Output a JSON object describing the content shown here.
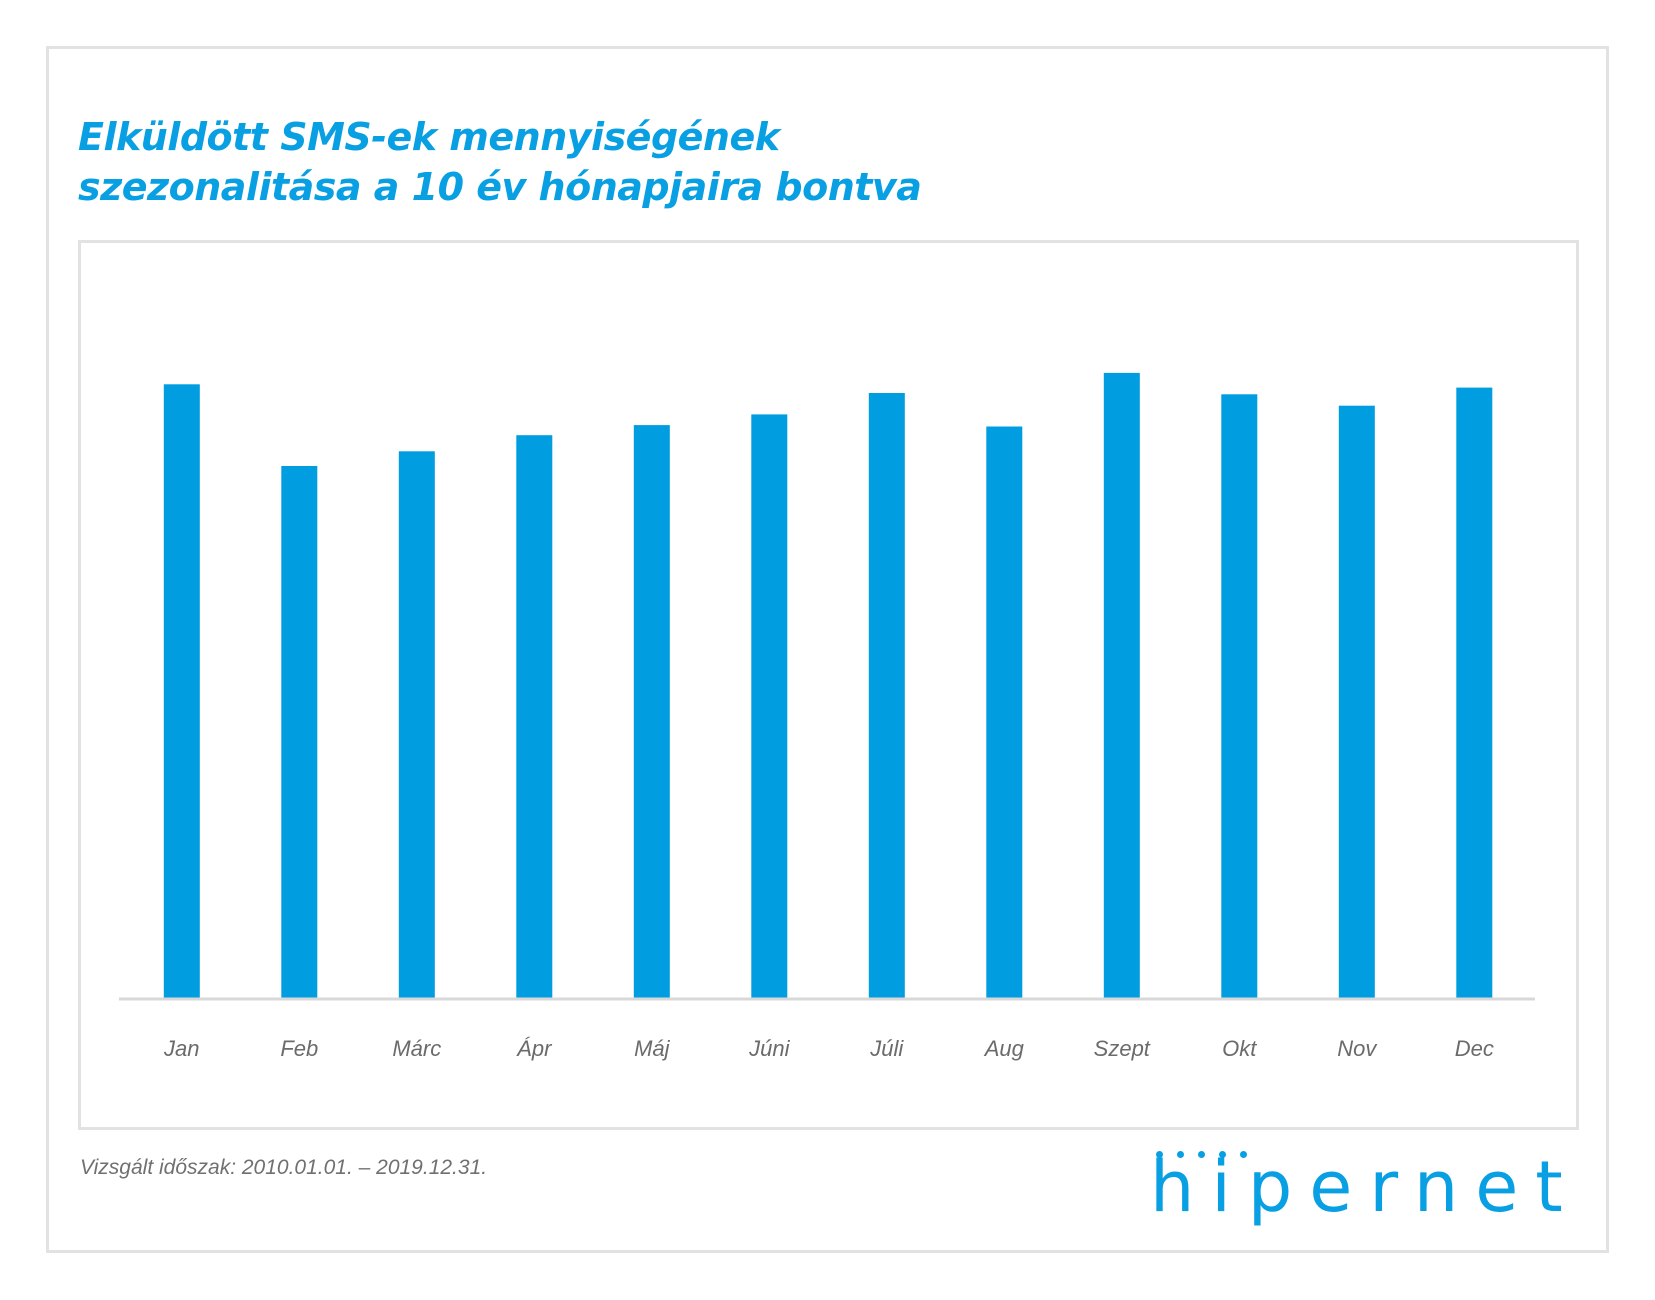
{
  "title_lines": [
    "Elküldött SMS-ek mennyiségének",
    "szezonalitása a 10 év hónapjaira bontva"
  ],
  "footnote": "Vizsgált időszak: 2010.01.01. – 2019.12.31.",
  "logo": {
    "text": "hipernet"
  },
  "colors": {
    "accent": "#089fe3",
    "bar": "#009de0",
    "axis": "#d8d8d8",
    "tick_label": "#6b6b6b",
    "frame": "#e2e2e2"
  },
  "chart_data": {
    "type": "bar",
    "title": "Elküldött SMS-ek mennyiségének szezonalitása a 10 év hónapjaira bontva",
    "categories": [
      "Jan",
      "Feb",
      "Márc",
      "Ápr",
      "Máj",
      "Júni",
      "Júli",
      "Aug",
      "Szept",
      "Okt",
      "Nov",
      "Dec"
    ],
    "values": [
      91.6,
      79.4,
      81.6,
      84.0,
      85.5,
      87.1,
      90.3,
      85.3,
      93.3,
      90.1,
      88.4,
      91.1
    ],
    "xlabel": "",
    "ylabel": "",
    "ylim": [
      0,
      100
    ],
    "grid": false,
    "y_axis_visible": false,
    "legend": "none"
  }
}
